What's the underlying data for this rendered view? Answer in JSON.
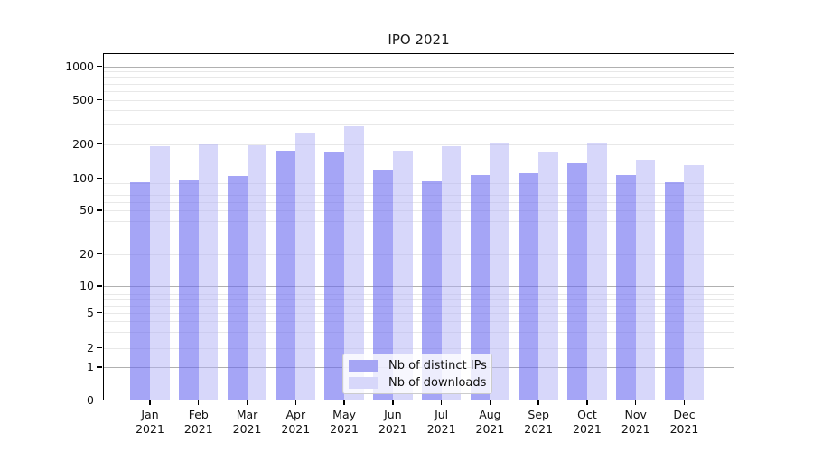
{
  "chart_data": {
    "type": "bar",
    "title": "IPO 2021",
    "x": [
      "Jan",
      "Feb",
      "Mar",
      "Apr",
      "May",
      "Jun",
      "Jul",
      "Aug",
      "Sep",
      "Oct",
      "Nov",
      "Dec"
    ],
    "x_year": "2021",
    "series": [
      {
        "name": "Nb of distinct IPs",
        "values": [
          93,
          97,
          105,
          176,
          168,
          120,
          95,
          108,
          112,
          135,
          107,
          93
        ]
      },
      {
        "name": "Nb of downloads",
        "values": [
          191,
          200,
          195,
          251,
          288,
          174,
          190,
          206,
          171,
          204,
          145,
          131
        ]
      }
    ],
    "yscale": "symlog",
    "yticks": {
      "values": [
        0,
        1,
        2,
        5,
        10,
        20,
        50,
        100,
        200,
        500,
        1000
      ],
      "labels": [
        "0",
        "1",
        "2",
        "5",
        "10",
        "20",
        "50",
        "100",
        "200",
        "500",
        "1000"
      ]
    },
    "ylim": [
      0,
      1200
    ],
    "grid": "on",
    "legend_position": "lower center",
    "colors": {
      "bar_ips": "rgba(105,105,240,0.60)",
      "bar_downloads": "rgba(175,175,245,0.50)",
      "swatch_ips": "#a5a5f4",
      "swatch_downloads": "#d7d7fa",
      "grid_major": "#b0b0b0",
      "grid_minor": "#e8e8e8"
    }
  }
}
